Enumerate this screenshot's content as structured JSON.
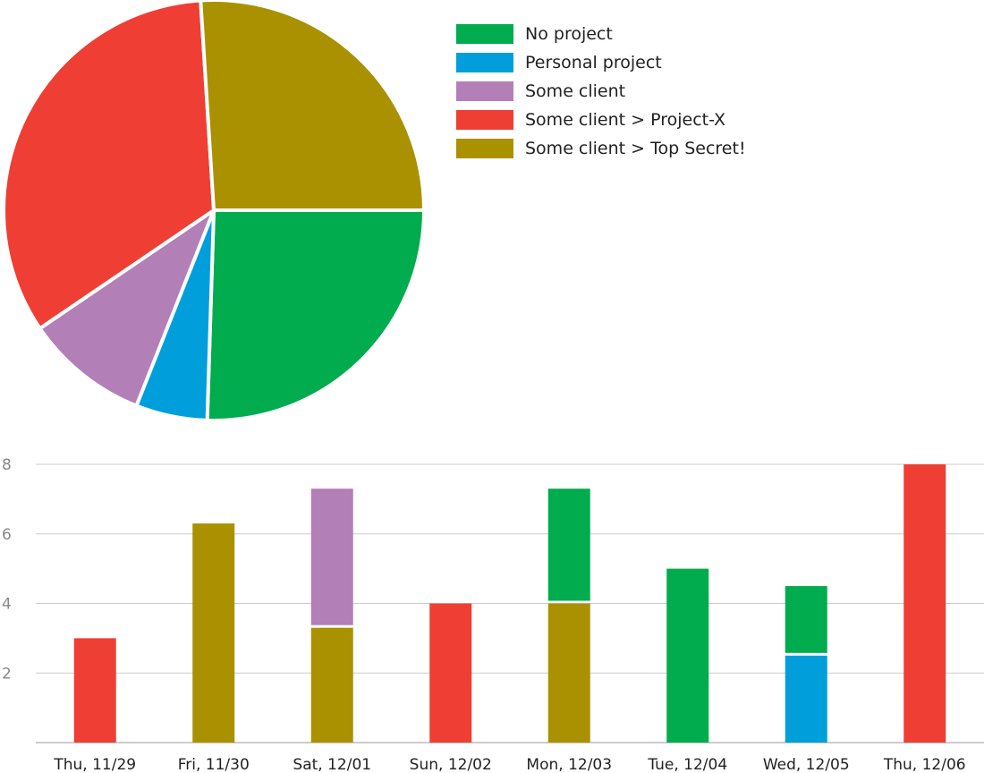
{
  "colors": {
    "No project": "#00ac4d",
    "Personal project": "#009fdb",
    "Some client": "#b37fb7",
    "Some client > Project-X": "#ef3e33",
    "Some client > Top Secret!": "#aa9101"
  },
  "chart_data": [
    {
      "type": "pie",
      "legend": [
        "No project",
        "Personal project",
        "Some client",
        "Some client > Project-X",
        "Some client > Top Secret!"
      ],
      "slices": [
        {
          "label": "No project",
          "value": 25.5
        },
        {
          "label": "Personal project",
          "value": 5.5
        },
        {
          "label": "Some client",
          "value": 9.5
        },
        {
          "label": "Some client > Project-X",
          "value": 33.5
        },
        {
          "label": "Some client > Top Secret!",
          "value": 26.0
        }
      ],
      "legend_position": "right"
    },
    {
      "type": "bar",
      "stacked": true,
      "categories": [
        "Thu, 11/29",
        "Fri, 11/30",
        "Sat, 12/01",
        "Sun, 12/02",
        "Mon, 12/03",
        "Tue, 12/04",
        "Wed, 12/05",
        "Thu, 12/06"
      ],
      "series": [
        {
          "name": "Some client > Top Secret!",
          "values": [
            0,
            6.3,
            3.3,
            0,
            4.0,
            0,
            0,
            0
          ]
        },
        {
          "name": "Personal project",
          "values": [
            0,
            0,
            0,
            0,
            0,
            0,
            2.5,
            0
          ]
        },
        {
          "name": "No project",
          "values": [
            0,
            0,
            0,
            0,
            3.3,
            5.0,
            2.0,
            0
          ]
        },
        {
          "name": "Some client",
          "values": [
            0,
            0,
            4.0,
            0,
            0,
            0,
            0,
            0
          ]
        },
        {
          "name": "Some client > Project-X",
          "values": [
            3.0,
            0,
            0,
            4.0,
            0,
            0,
            0,
            8.0
          ]
        }
      ],
      "yticks": [
        "2",
        "4",
        "6",
        "8"
      ],
      "ylim": [
        0,
        8
      ],
      "grid": true
    }
  ]
}
